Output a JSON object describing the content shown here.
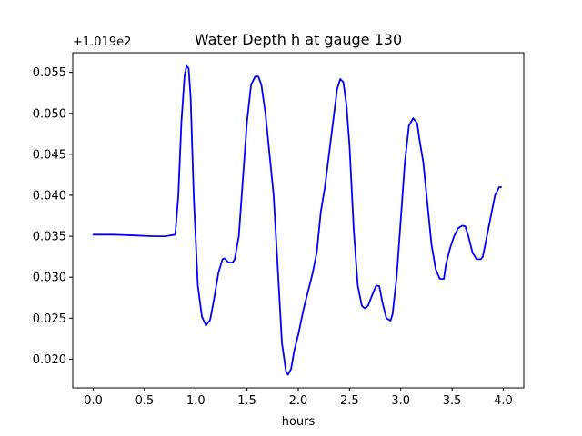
{
  "chart_data": {
    "type": "line",
    "title": "Water Depth h at gauge 130",
    "xlabel": "hours",
    "ylabel": "",
    "offset_label": "+1.019e2",
    "xlim": [
      -0.2,
      4.2
    ],
    "ylim": [
      0.0165,
      0.0574
    ],
    "xticks": [
      0.0,
      0.5,
      1.0,
      1.5,
      2.0,
      2.5,
      3.0,
      3.5,
      4.0
    ],
    "xtick_labels": [
      "0.0",
      "0.5",
      "1.0",
      "1.5",
      "2.0",
      "2.5",
      "3.0",
      "3.5",
      "4.0"
    ],
    "yticks": [
      0.02,
      0.025,
      0.03,
      0.035,
      0.04,
      0.045,
      0.05,
      0.055
    ],
    "ytick_labels": [
      "0.020",
      "0.025",
      "0.030",
      "0.035",
      "0.040",
      "0.045",
      "0.050",
      "0.055"
    ],
    "grid": false,
    "series": [
      {
        "color": "#0000ff",
        "x": [
          0.0,
          0.2,
          0.4,
          0.6,
          0.7,
          0.8,
          0.83,
          0.86,
          0.89,
          0.91,
          0.93,
          0.95,
          0.98,
          1.02,
          1.06,
          1.1,
          1.14,
          1.18,
          1.22,
          1.26,
          1.28,
          1.32,
          1.36,
          1.38,
          1.42,
          1.46,
          1.5,
          1.54,
          1.58,
          1.61,
          1.64,
          1.68,
          1.72,
          1.76,
          1.8,
          1.84,
          1.88,
          1.9,
          1.93,
          1.96,
          2.0,
          2.05,
          2.1,
          2.14,
          2.18,
          2.22,
          2.26,
          2.3,
          2.34,
          2.38,
          2.41,
          2.44,
          2.47,
          2.5,
          2.54,
          2.58,
          2.62,
          2.65,
          2.68,
          2.72,
          2.76,
          2.79,
          2.82,
          2.86,
          2.9,
          2.92,
          2.96,
          3.0,
          3.04,
          3.08,
          3.12,
          3.16,
          3.18,
          3.22,
          3.26,
          3.3,
          3.34,
          3.38,
          3.42,
          3.44,
          3.48,
          3.52,
          3.56,
          3.6,
          3.63,
          3.66,
          3.7,
          3.74,
          3.78,
          3.8,
          3.84,
          3.88,
          3.92,
          3.96,
          3.98
        ],
        "y": [
          0.0352,
          0.0352,
          0.0351,
          0.035,
          0.035,
          0.0352,
          0.04,
          0.049,
          0.0545,
          0.0558,
          0.0555,
          0.052,
          0.04,
          0.029,
          0.0252,
          0.0241,
          0.0248,
          0.0275,
          0.0305,
          0.0322,
          0.0323,
          0.0318,
          0.0318,
          0.0322,
          0.035,
          0.042,
          0.049,
          0.0535,
          0.0545,
          0.0545,
          0.0535,
          0.05,
          0.045,
          0.04,
          0.031,
          0.022,
          0.0185,
          0.0181,
          0.0188,
          0.021,
          0.023,
          0.026,
          0.0285,
          0.0305,
          0.033,
          0.038,
          0.041,
          0.045,
          0.049,
          0.053,
          0.0542,
          0.0538,
          0.051,
          0.046,
          0.036,
          0.029,
          0.0265,
          0.0262,
          0.0265,
          0.0278,
          0.029,
          0.0289,
          0.027,
          0.025,
          0.0247,
          0.0255,
          0.03,
          0.037,
          0.044,
          0.0485,
          0.0494,
          0.0488,
          0.047,
          0.044,
          0.039,
          0.034,
          0.031,
          0.0298,
          0.0298,
          0.0315,
          0.0335,
          0.035,
          0.036,
          0.0363,
          0.0362,
          0.035,
          0.033,
          0.0322,
          0.0322,
          0.0325,
          0.035,
          0.0375,
          0.04,
          0.041,
          0.041
        ]
      }
    ]
  }
}
